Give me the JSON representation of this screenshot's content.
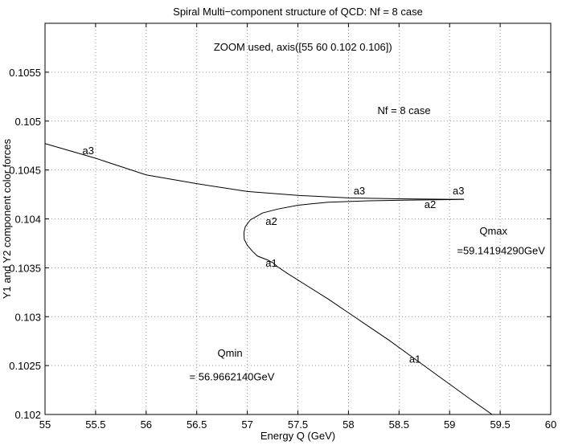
{
  "chart_data": {
    "type": "line",
    "title": "Spiral Multi−component structure of QCD: Nf = 8 case",
    "xlabel": "Energy Q (GeV)",
    "ylabel": "Y1 and Y2 component color forces",
    "xlim": [
      55,
      60
    ],
    "ylim": [
      0.102,
      0.106
    ],
    "grid": true,
    "xticks": [
      55,
      55.5,
      56,
      56.5,
      57,
      57.5,
      58,
      58.5,
      59,
      59.5,
      60
    ],
    "xtick_labels": [
      "55",
      "55.5",
      "56",
      "56.5",
      "57",
      "57.5",
      "58",
      "58.5",
      "59",
      "59.5",
      "60"
    ],
    "yticks": [
      0.102,
      0.1025,
      0.103,
      0.1035,
      0.104,
      0.1045,
      0.105,
      0.1055
    ],
    "ytick_labels": [
      "0.102",
      "0.1025",
      "0.103",
      "0.1035",
      "0.104",
      "0.1045",
      "0.105",
      "0.1055"
    ],
    "series": [
      {
        "name": "a3",
        "x": [
          55,
          55.5,
          56,
          56.5,
          57,
          57.5,
          58,
          58.5,
          59,
          59.1419429
        ],
        "y": [
          0.10477,
          0.10462,
          0.10445,
          0.10436,
          0.10428,
          0.10424,
          0.104215,
          0.104205,
          0.1042,
          0.1042
        ]
      },
      {
        "name": "a1-a2",
        "x": [
          59.42,
          59.2,
          59.0,
          58.8,
          58.6,
          58.4,
          58.2,
          58.0,
          57.8,
          57.6,
          57.4,
          57.3,
          57.25,
          57.2,
          57.1,
          57.05,
          57.0,
          56.97,
          56.966214,
          56.98,
          57.03,
          57.15,
          57.3,
          57.5,
          57.8,
          58.2,
          58.6,
          59.0,
          59.1419429
        ],
        "y": [
          0.102,
          0.10216,
          0.10231,
          0.10246,
          0.10261,
          0.10276,
          0.1029,
          0.10304,
          0.10318,
          0.10331,
          0.10344,
          0.10351,
          0.1035533,
          0.10358,
          0.10362,
          0.10367,
          0.10373,
          0.10379,
          0.10386,
          0.10392,
          0.10399,
          0.10406,
          0.1041,
          0.10414,
          0.10417,
          0.104185,
          0.104192,
          0.104197,
          0.1042
        ]
      }
    ],
    "annotations": [
      {
        "text": "a3",
        "x": 55.37,
        "y": 0.10466
      },
      {
        "text": "a3",
        "x": 58.05,
        "y": 0.10425
      },
      {
        "text": "a3",
        "x": 59.03,
        "y": 0.10425
      },
      {
        "text": "a2",
        "x": 58.75,
        "y": 0.10411
      },
      {
        "text": "a2",
        "x": 57.18,
        "y": 0.10394
      },
      {
        "text": "a1",
        "x": 57.18,
        "y": 0.10351
      },
      {
        "text": "a1",
        "x": 58.6,
        "y": 0.10253
      },
      {
        "text": "Qmax",
        "x": 59.2,
        "y": 0.10384
      },
      {
        "text": "=59.14194290GeV",
        "x": 59.2,
        "y": 0.10364
      },
      {
        "text": "Qmin",
        "x": 56.92,
        "y": 0.10259
      },
      {
        "text": "= 56.9662140GeV",
        "x": 56.92,
        "y": 0.10235
      },
      {
        "text": "ZOOM used, axis([55  60  0.102  0.106])",
        "x": 57.55,
        "y": 0.10572
      },
      {
        "text": "Nf = 8 case",
        "x": 58.55,
        "y": 0.10507
      }
    ]
  }
}
